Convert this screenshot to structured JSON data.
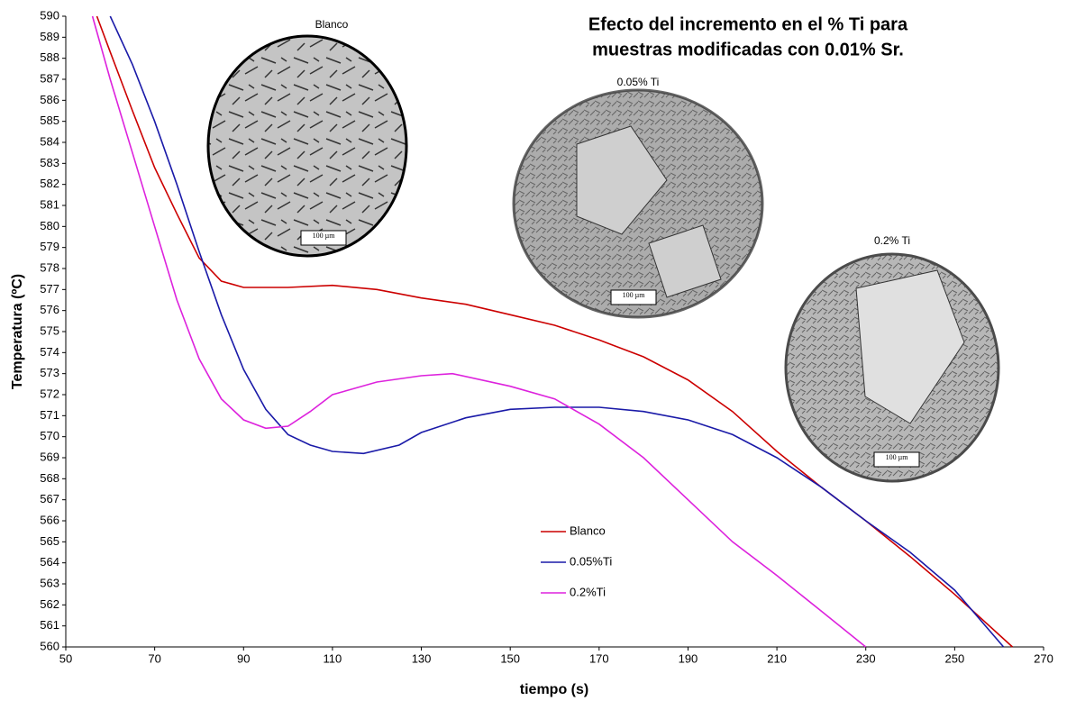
{
  "chart_data": {
    "type": "line",
    "title": [
      "Efecto del incremento en el % Ti para",
      "muestras modificadas con 0.01% Sr."
    ],
    "x_label": "tiempo (s)",
    "y_label": "Temperatura (ºC)",
    "xlim": [
      50,
      270
    ],
    "xticks": [
      50,
      70,
      90,
      110,
      130,
      150,
      170,
      190,
      210,
      230,
      250,
      270
    ],
    "ylim": [
      560,
      590
    ],
    "yticks": [
      560,
      561,
      562,
      563,
      564,
      565,
      566,
      567,
      568,
      569,
      570,
      571,
      572,
      573,
      574,
      575,
      576,
      577,
      578,
      579,
      580,
      581,
      582,
      583,
      584,
      585,
      586,
      587,
      588,
      589,
      590
    ],
    "grid": false,
    "legend": "lower center",
    "series": [
      {
        "name": "Blanco",
        "color": "#cc0000",
        "x": [
          57,
          60,
          65,
          70,
          75,
          80,
          85,
          90,
          100,
          110,
          120,
          130,
          140,
          150,
          160,
          170,
          180,
          190,
          200,
          210,
          220,
          230,
          240,
          250,
          263
        ],
        "values": [
          590,
          588.3,
          585.5,
          582.8,
          580.6,
          578.5,
          577.4,
          577.1,
          577.1,
          577.2,
          577,
          576.6,
          576.3,
          575.8,
          575.3,
          574.6,
          573.8,
          572.7,
          571.2,
          569.3,
          567.6,
          566,
          564.3,
          562.5,
          560
        ]
      },
      {
        "name": "0.05%Ti",
        "color": "#1a1aa8",
        "x": [
          60,
          65,
          70,
          75,
          80,
          85,
          90,
          95,
          100,
          105,
          110,
          117,
          125,
          130,
          140,
          150,
          160,
          170,
          180,
          190,
          200,
          210,
          220,
          230,
          240,
          250,
          261
        ],
        "values": [
          590,
          587.7,
          585,
          582,
          578.8,
          575.8,
          573.2,
          571.3,
          570.1,
          569.6,
          569.3,
          569.2,
          569.6,
          570.2,
          570.9,
          571.3,
          571.4,
          571.4,
          571.2,
          570.8,
          570.1,
          569,
          567.6,
          566,
          564.5,
          562.7,
          560
        ]
      },
      {
        "name": "0.2%Ti",
        "color": "#dd22dd",
        "x": [
          56,
          60,
          65,
          70,
          75,
          80,
          85,
          90,
          95,
          100,
          105,
          110,
          120,
          130,
          137,
          150,
          160,
          170,
          180,
          190,
          200,
          210,
          220,
          230
        ],
        "values": [
          590,
          587,
          583.5,
          580,
          576.5,
          573.7,
          571.8,
          570.8,
          570.4,
          570.5,
          571.2,
          572,
          572.6,
          572.9,
          573,
          572.4,
          571.8,
          570.6,
          569,
          567,
          565,
          563.4,
          561.7,
          560
        ]
      }
    ],
    "annotations": [
      {
        "label": "Blanco",
        "scale": "100 µm"
      },
      {
        "label": "0.05% Ti",
        "scale": "100 µm"
      },
      {
        "label": "0.2% Ti",
        "scale": "100 µm"
      }
    ]
  }
}
